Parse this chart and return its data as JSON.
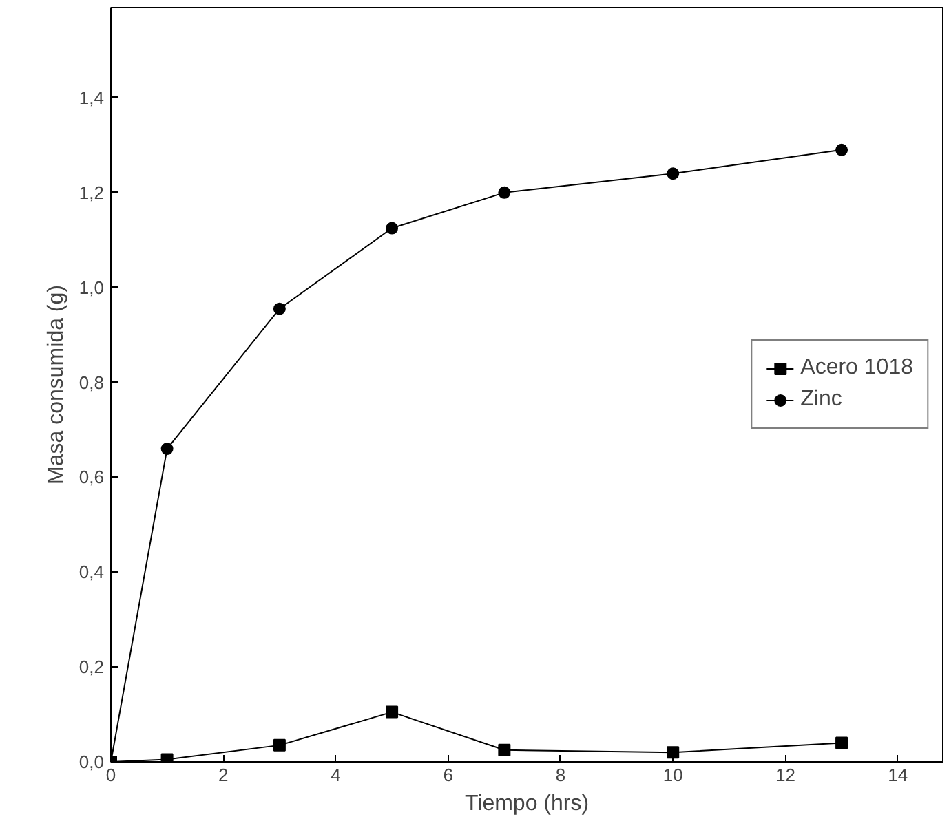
{
  "chart_data": {
    "type": "line",
    "xlabel": "Tiempo (hrs)",
    "ylabel": "Masa consumida (g)",
    "xlim": [
      0,
      14.8
    ],
    "ylim": [
      0,
      1.59
    ],
    "xticks": [
      0,
      2,
      4,
      6,
      8,
      10,
      12,
      14
    ],
    "yticks": [
      {
        "value": 0,
        "label": "0,0"
      },
      {
        "value": 0.2,
        "label": "0,2"
      },
      {
        "value": 0.4,
        "label": "0,4"
      },
      {
        "value": 0.6,
        "label": "0,6"
      },
      {
        "value": 0.8,
        "label": "0,8"
      },
      {
        "value": 1.0,
        "label": "1,0"
      },
      {
        "value": 1.2,
        "label": "1,2"
      },
      {
        "value": 1.4,
        "label": "1,4"
      }
    ],
    "grid": false,
    "legend": "right",
    "line_style": "solid",
    "series": [
      {
        "name": "Acero 1018",
        "color": "#000000",
        "marker": "square",
        "x": [
          0,
          1,
          3,
          5,
          7,
          10,
          13
        ],
        "values": [
          0,
          0.005,
          0.035,
          0.105,
          0.025,
          0.02,
          0.04
        ]
      },
      {
        "name": "Zinc",
        "color": "#000000",
        "marker": "circle",
        "x": [
          0,
          1,
          3,
          5,
          7,
          10,
          13
        ],
        "values": [
          0,
          0.66,
          0.955,
          1.125,
          1.2,
          1.24,
          1.29
        ]
      }
    ]
  }
}
